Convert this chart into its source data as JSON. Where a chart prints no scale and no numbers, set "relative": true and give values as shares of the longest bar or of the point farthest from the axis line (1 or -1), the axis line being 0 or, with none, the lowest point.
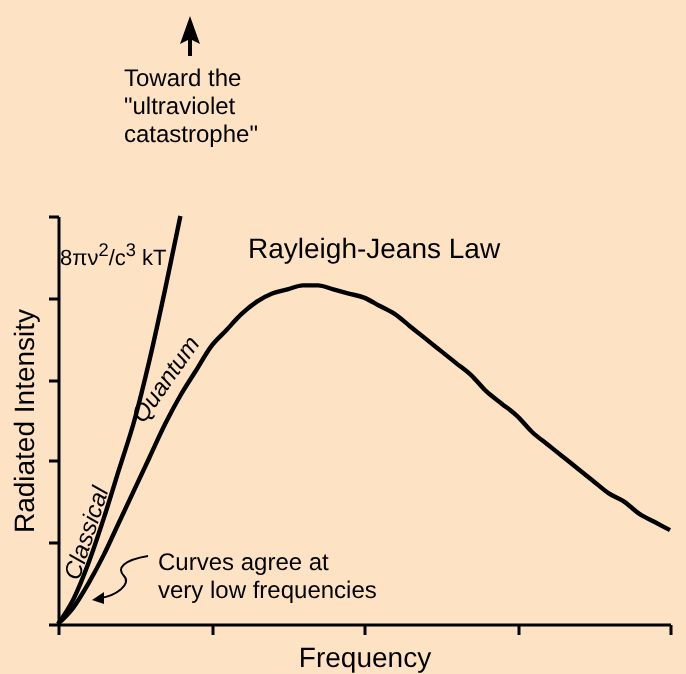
{
  "chart_data": {
    "type": "line",
    "relative": true,
    "xlabel": "Frequency",
    "ylabel": "Radiated Intensity",
    "categories": [
      null,
      null,
      null,
      null,
      null,
      null,
      null,
      null,
      null,
      null,
      null,
      null,
      null,
      null,
      null,
      null,
      null,
      null,
      null,
      null,
      null,
      null,
      null,
      null,
      null,
      null,
      null,
      null,
      null,
      null,
      null,
      null,
      null,
      null,
      null,
      null,
      null,
      null,
      null,
      null,
      null
    ],
    "series": [
      {
        "name": "Classical",
        "color": "#000000",
        "values": [
          0,
          0.06,
          0.15,
          0.26,
          0.38,
          0.5,
          0.65,
          0.82,
          1,
          null,
          null,
          null,
          null,
          null,
          null,
          null,
          null,
          null,
          null,
          null,
          null,
          null,
          null,
          null,
          null,
          null,
          null,
          null,
          null,
          null,
          null,
          null,
          null,
          null,
          null,
          null,
          null,
          null,
          null,
          null,
          null
        ]
      },
      {
        "name": "Quantum",
        "color": "#000000",
        "values": [
          0,
          0.04,
          0.1,
          0.17,
          0.25,
          0.33,
          0.41,
          0.49,
          0.56,
          0.62,
          0.68,
          0.72,
          0.76,
          0.79,
          0.81,
          0.82,
          0.83,
          0.83,
          0.82,
          0.81,
          0.8,
          0.78,
          0.76,
          0.73,
          0.7,
          0.67,
          0.64,
          0.61,
          0.57,
          0.54,
          0.51,
          0.47,
          0.44,
          0.41,
          0.38,
          0.35,
          0.32,
          0.3,
          0.27,
          0.25,
          0.23
        ]
      }
    ],
    "annotations": [
      "Toward the\n\"ultraviolet\ncatastrophe\"",
      "Rayleigh-Jeans Law",
      "8πν$^{2}$/c$^{3}$ kT",
      "Curves agree at\nvery low frequencies"
    ],
    "grid": false,
    "line_style": "solid",
    "marker": "none"
  }
}
